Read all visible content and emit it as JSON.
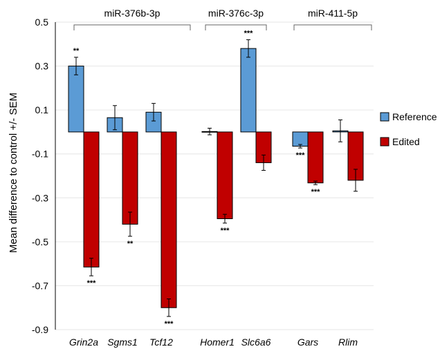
{
  "chart_data": {
    "type": "bar",
    "ylabel": "Mean difference to control +/- SEM",
    "ylim": [
      -0.9,
      0.5
    ],
    "yticks": [
      0.5,
      0.3,
      0.1,
      -0.1,
      -0.3,
      -0.5,
      -0.7,
      -0.9
    ],
    "ytick_labels": [
      "0.5",
      "0.3",
      "0.1",
      "-0.1",
      "-0.3",
      "-0.5",
      "-0.7",
      "-0.9"
    ],
    "grid": true,
    "legend_position": "right",
    "categories": [
      "Grin2a",
      "Sgms1",
      "Tcf12",
      "Homer1",
      "Slc6a6",
      "Gars",
      "Rlim"
    ],
    "groups": [
      {
        "label": "miR-376b-3p",
        "categories": [
          "Grin2a",
          "Sgms1",
          "Tcf12"
        ]
      },
      {
        "label": "miR-376c-3p",
        "categories": [
          "Homer1",
          "Slc6a6"
        ]
      },
      {
        "label": "miR-411-5p",
        "categories": [
          "Gars",
          "Rlim"
        ]
      }
    ],
    "series": [
      {
        "name": "Reference",
        "color": "#5b9bd5",
        "values": [
          0.3,
          0.065,
          0.09,
          0.002,
          0.38,
          -0.065,
          0.005
        ],
        "errors": [
          0.04,
          0.055,
          0.04,
          0.015,
          0.04,
          0.008,
          0.05
        ],
        "significance": [
          "**",
          "",
          "",
          "",
          "***",
          "***",
          ""
        ]
      },
      {
        "name": "Edited",
        "color": "#c00000",
        "values": [
          -0.615,
          -0.42,
          -0.8,
          -0.395,
          -0.14,
          -0.232,
          -0.22
        ],
        "errors": [
          0.04,
          0.055,
          0.04,
          0.02,
          0.035,
          0.008,
          0.05
        ],
        "significance": [
          "***",
          "**",
          "***",
          "***",
          "",
          "***",
          ""
        ]
      }
    ]
  }
}
